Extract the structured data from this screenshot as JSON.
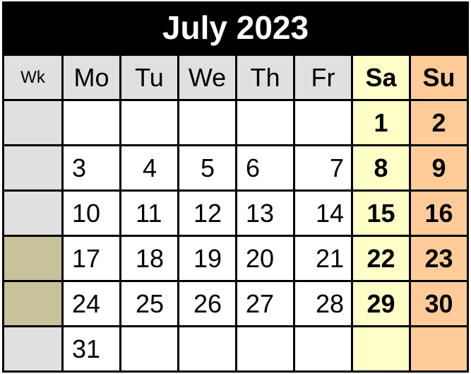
{
  "title": "July 2023",
  "headers": {
    "wk": "Wk",
    "mo": "Mo",
    "tu": "Tu",
    "we": "We",
    "th": "Th",
    "fr": "Fr",
    "sa": "Sa",
    "su": "Su"
  },
  "weeks": [
    {
      "mo": "",
      "tu": "",
      "we": "",
      "th": "",
      "fr": "",
      "sa": "1",
      "su": "2"
    },
    {
      "mo": "3",
      "tu": "4",
      "we": "5",
      "th": "6",
      "fr": "7",
      "sa": "8",
      "su": "9"
    },
    {
      "mo": "10",
      "tu": "11",
      "we": "12",
      "th": "13",
      "fr": "14",
      "sa": "15",
      "su": "16"
    },
    {
      "mo": "17",
      "tu": "18",
      "we": "19",
      "th": "20",
      "fr": "21",
      "sa": "22",
      "su": "23"
    },
    {
      "mo": "24",
      "tu": "25",
      "we": "26",
      "th": "27",
      "fr": "28",
      "sa": "29",
      "su": "30"
    },
    {
      "mo": "31",
      "tu": "",
      "we": "",
      "th": "",
      "fr": "",
      "sa": "",
      "su": ""
    }
  ],
  "colors": {
    "title_bg": "#000000",
    "header_bg": "#e0e0e0",
    "saturday_bg": "#ffffc8",
    "sunday_bg": "#ffcc99",
    "week_highlight": "#c8c29a"
  }
}
